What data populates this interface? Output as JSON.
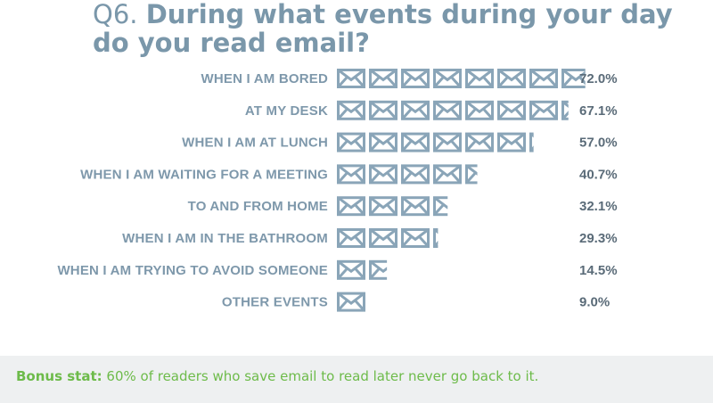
{
  "title": {
    "question_number": "Q6.",
    "line1": "During what events during your day",
    "line2": "do you read email?"
  },
  "colors": {
    "title": "#7a97aa",
    "icon": "#8aa5b8",
    "label": "#7e98ab",
    "value": "#5a6b78",
    "bonus": "#6dbb4a",
    "bonus_bg": "#eef0f1"
  },
  "chart_data": {
    "type": "bar",
    "orientation": "horizontal",
    "mark": "envelope-icon",
    "categories": [
      "WHEN I AM BORED",
      "AT MY DESK",
      "WHEN I AM AT LUNCH",
      "WHEN I AM WAITING FOR A MEETING",
      "TO AND FROM HOME",
      "WHEN I AM IN THE BATHROOM",
      "WHEN I AM TRYING TO AVOID SOMEONE",
      "OTHER EVENTS"
    ],
    "values": [
      72.0,
      67.1,
      57.0,
      40.7,
      32.1,
      29.3,
      14.5,
      9.0
    ],
    "value_labels": [
      "72.0%",
      "67.1%",
      "57.0%",
      "40.7%",
      "32.1%",
      "29.3%",
      "14.5%",
      "9.0%"
    ],
    "unit": "%"
  },
  "bonus": {
    "label": "Bonus stat:",
    "text": " 60% of readers who save email to read later never go back to it."
  }
}
